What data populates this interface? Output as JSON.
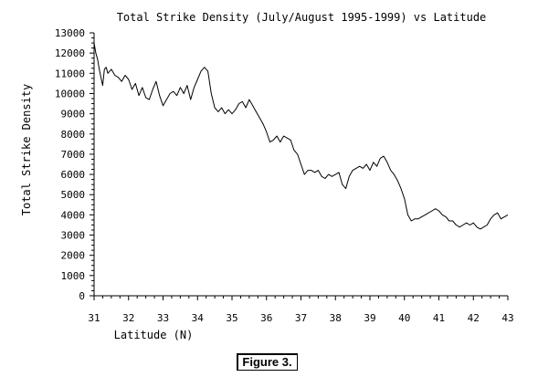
{
  "chart_data": {
    "type": "line",
    "title": "Total Strike Density (July/August 1995-1999) vs Latitude",
    "xlabel": "Latitude (N)",
    "ylabel": "Total Strike Density",
    "xlim": [
      31,
      43
    ],
    "ylim": [
      0,
      13000
    ],
    "x_ticks": [
      31,
      32,
      33,
      34,
      35,
      36,
      37,
      38,
      39,
      40,
      41,
      42,
      43
    ],
    "y_ticks": [
      0,
      1000,
      2000,
      3000,
      4000,
      5000,
      6000,
      7000,
      8000,
      9000,
      10000,
      11000,
      12000,
      13000
    ],
    "grid": false,
    "legend": "none",
    "line_color": "#000000",
    "series": [
      {
        "x": [
          31.0,
          31.05,
          31.1,
          31.15,
          31.2,
          31.25,
          31.3,
          31.35,
          31.4,
          31.5,
          31.6,
          31.7,
          31.8,
          31.9,
          32.0,
          32.1,
          32.2,
          32.3,
          32.4,
          32.5,
          32.6,
          32.7,
          32.8,
          32.9,
          33.0,
          33.1,
          33.2,
          33.3,
          33.4,
          33.5,
          33.6,
          33.7,
          33.8,
          33.9,
          34.0,
          34.1,
          34.2,
          34.3,
          34.4,
          34.5,
          34.6,
          34.7,
          34.8,
          34.9,
          35.0,
          35.1,
          35.2,
          35.3,
          35.4,
          35.5,
          35.6,
          35.7,
          35.8,
          35.9,
          36.0,
          36.1,
          36.2,
          36.3,
          36.4,
          36.5,
          36.6,
          36.7,
          36.8,
          36.9,
          37.0,
          37.1,
          37.2,
          37.3,
          37.4,
          37.5,
          37.6,
          37.7,
          37.8,
          37.9,
          38.0,
          38.1,
          38.2,
          38.3,
          38.4,
          38.5,
          38.6,
          38.7,
          38.8,
          38.9,
          39.0,
          39.1,
          39.2,
          39.3,
          39.4,
          39.5,
          39.6,
          39.7,
          39.8,
          39.9,
          40.0,
          40.1,
          40.2,
          40.3,
          40.4,
          40.5,
          40.6,
          40.7,
          40.8,
          40.9,
          41.0,
          41.1,
          41.2,
          41.3,
          41.4,
          41.5,
          41.6,
          41.7,
          41.8,
          41.9,
          42.0,
          42.1,
          42.2,
          42.3,
          42.4,
          42.5,
          42.6,
          42.7,
          42.8,
          42.9,
          43.0
        ],
        "values": [
          12500,
          12000,
          11700,
          11200,
          10800,
          10400,
          11200,
          11300,
          11000,
          11200,
          10900,
          10800,
          10600,
          10900,
          10700,
          10200,
          10500,
          9900,
          10300,
          9800,
          9700,
          10200,
          10600,
          9900,
          9400,
          9700,
          10000,
          10100,
          9900,
          10300,
          10000,
          10400,
          9700,
          10300,
          10700,
          11100,
          11300,
          11100,
          10000,
          9300,
          9100,
          9300,
          9000,
          9200,
          9000,
          9200,
          9500,
          9600,
          9300,
          9700,
          9400,
          9100,
          8800,
          8500,
          8100,
          7600,
          7700,
          7900,
          7600,
          7900,
          7800,
          7700,
          7200,
          7000,
          6500,
          6000,
          6200,
          6200,
          6100,
          6200,
          5900,
          5800,
          6000,
          5900,
          6000,
          6100,
          5500,
          5300,
          5900,
          6200,
          6300,
          6400,
          6300,
          6500,
          6200,
          6600,
          6400,
          6800,
          6900,
          6600,
          6200,
          6000,
          5700,
          5300,
          4800,
          4000,
          3700,
          3800,
          3800,
          3900,
          4000,
          4100,
          4200,
          4300,
          4200,
          4000,
          3900,
          3700,
          3700,
          3500,
          3400,
          3500,
          3600,
          3500,
          3600,
          3400,
          3300,
          3400,
          3500,
          3800,
          4000,
          4100,
          3800,
          3900,
          4000
        ]
      }
    ]
  },
  "caption": "Figure 3."
}
